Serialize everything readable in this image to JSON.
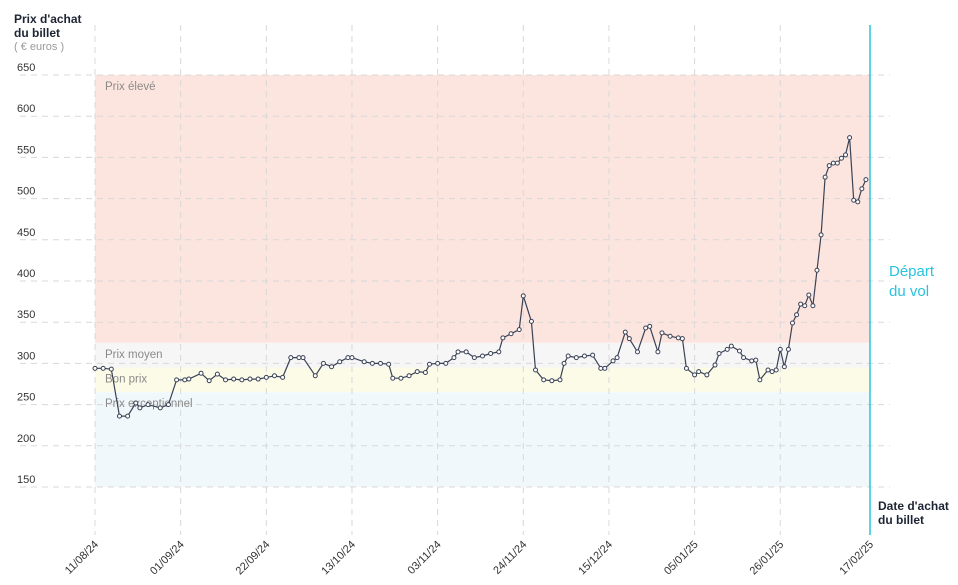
{
  "chart_data": {
    "type": "line",
    "y_label": "Prix d'achat du billet",
    "y_unit": "( € euros )",
    "x_label": "Date d'achat du billet",
    "departure": {
      "label": "Départ du vol",
      "date": "17/02/25",
      "color": "#29c3dd"
    },
    "line_color": "#3a4256",
    "grid": true,
    "ylim": [
      150,
      650
    ],
    "yticks": [
      150,
      200,
      250,
      300,
      350,
      400,
      450,
      500,
      550,
      600,
      650
    ],
    "xlim": [
      "11/08/24",
      "17/02/25"
    ],
    "xticks": [
      "11/08/24",
      "01/09/24",
      "22/09/24",
      "13/10/24",
      "03/11/24",
      "24/11/24",
      "15/12/24",
      "05/01/25",
      "26/01/25",
      "17/02/25"
    ],
    "zones": [
      {
        "label": "Prix élevé",
        "from": 325,
        "to": 650,
        "color": "#fde5df"
      },
      {
        "label": "Prix moyen",
        "from": 295,
        "to": 325,
        "color": "#f6f6f6"
      },
      {
        "label": "Bon prix",
        "from": 265,
        "to": 295,
        "color": "#fcfbe8"
      },
      {
        "label": "Prix exceptionnel",
        "from": 150,
        "to": 265,
        "color": "#f1f8fc"
      }
    ],
    "x": [
      "11/08/24",
      "13/08/24",
      "15/08/24",
      "17/08/24",
      "19/08/24",
      "21/08/24",
      "22/08/24",
      "24/08/24",
      "27/08/24",
      "29/08/24",
      "31/08/24",
      "02/09/24",
      "03/09/24",
      "06/09/24",
      "08/09/24",
      "10/09/24",
      "12/09/24",
      "14/09/24",
      "16/09/24",
      "18/09/24",
      "20/09/24",
      "22/09/24",
      "24/09/24",
      "26/09/24",
      "28/09/24",
      "30/09/24",
      "01/10/24",
      "04/10/24",
      "06/10/24",
      "08/10/24",
      "10/10/24",
      "12/10/24",
      "13/10/24",
      "16/10/24",
      "18/10/24",
      "20/10/24",
      "22/10/24",
      "23/10/24",
      "25/10/24",
      "27/10/24",
      "29/10/24",
      "31/10/24",
      "01/11/24",
      "03/11/24",
      "05/11/24",
      "07/11/24",
      "08/11/24",
      "10/11/24",
      "12/11/24",
      "14/11/24",
      "16/11/24",
      "18/11/24",
      "19/11/24",
      "21/11/24",
      "23/11/24",
      "24/11/24",
      "26/11/24",
      "27/11/24",
      "29/11/24",
      "01/12/24",
      "03/12/24",
      "04/12/24",
      "05/12/24",
      "07/12/24",
      "09/12/24",
      "11/12/24",
      "13/12/24",
      "14/12/24",
      "16/12/24",
      "17/12/24",
      "19/12/24",
      "20/12/24",
      "22/12/24",
      "24/12/24",
      "25/12/24",
      "27/12/24",
      "28/12/24",
      "30/12/24",
      "01/01/25",
      "02/01/25",
      "03/01/25",
      "05/01/25",
      "06/01/25",
      "08/01/25",
      "10/01/25",
      "11/01/25",
      "13/01/25",
      "14/01/25",
      "16/01/25",
      "17/01/25",
      "19/01/25",
      "20/01/25",
      "21/01/25",
      "23/01/25",
      "24/01/25",
      "25/01/25",
      "26/01/25",
      "27/01/25",
      "28/01/25",
      "29/01/25",
      "30/01/25",
      "31/01/25",
      "01/02/25",
      "02/02/25",
      "03/02/25",
      "04/02/25",
      "05/02/25",
      "06/02/25",
      "07/02/25",
      "08/02/25",
      "09/02/25",
      "10/02/25",
      "11/02/25",
      "12/02/25",
      "13/02/25",
      "14/02/25",
      "15/02/25",
      "16/02/25"
    ],
    "values": [
      294,
      294,
      293,
      236,
      236,
      252,
      246,
      250,
      246,
      250,
      280,
      280,
      281,
      288,
      279,
      287,
      280,
      281,
      280,
      281,
      281,
      283,
      285,
      283,
      307,
      307,
      307,
      285,
      300,
      296,
      302,
      307,
      307,
      302,
      300,
      300,
      299,
      282,
      282,
      285,
      290,
      289,
      299,
      300,
      300,
      307,
      314,
      314,
      307,
      309,
      312,
      314,
      331,
      336,
      341,
      382,
      351,
      292,
      280,
      279,
      280,
      300,
      309,
      307,
      309,
      310,
      294,
      294,
      303,
      307,
      338,
      330,
      314,
      343,
      345,
      314,
      337,
      333,
      331,
      330,
      294,
      286,
      290,
      286,
      298,
      312,
      317,
      321,
      315,
      307,
      303,
      304,
      280,
      292,
      290,
      292,
      317,
      296,
      317,
      349,
      359,
      372,
      370,
      383,
      370,
      413,
      456,
      526,
      540,
      543,
      543,
      549,
      553,
      574,
      498,
      496,
      512,
      523
    ]
  }
}
